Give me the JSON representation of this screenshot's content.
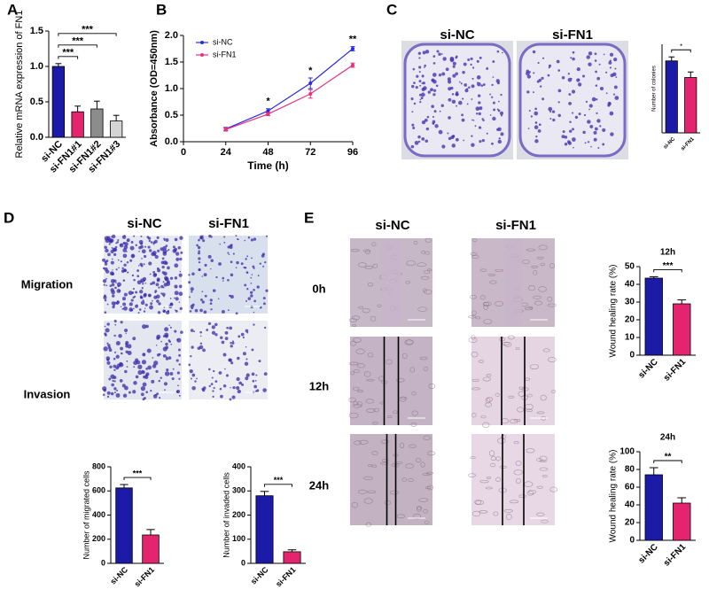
{
  "panels": [
    "A",
    "B",
    "C",
    "D",
    "E"
  ],
  "images": {
    "C": {
      "columns": [
        "si-NC",
        "si-FN1"
      ]
    },
    "D": {
      "columns": [
        "si-NC",
        "si-FN1"
      ],
      "rows": [
        "Migration",
        "Invasion"
      ]
    },
    "E": {
      "columns": [
        "si-NC",
        "si-FN1"
      ],
      "rows": [
        "0h",
        "12h",
        "24h"
      ]
    }
  },
  "chart_data": [
    {
      "type": "bar",
      "ylabel": "Relative mRNA expression of FN1",
      "categories": [
        "si-NC",
        "si-FN1#1",
        "si-FN1#2",
        "si-FN1#3"
      ],
      "values": [
        1.0,
        0.36,
        0.4,
        0.23
      ],
      "errors": [
        0.04,
        0.08,
        0.11,
        0.08
      ],
      "colors": [
        "#1b1ba8",
        "#e4246e",
        "#8c8c8c",
        "#d4d4d4"
      ],
      "ylim": [
        0,
        1.5
      ],
      "yticks": [
        {
          "value": 0,
          "label": "0.0"
        },
        {
          "value": 0.5,
          "label": "0.5"
        },
        {
          "value": 1,
          "label": "1.0"
        },
        {
          "value": 1.5,
          "label": "1.5"
        }
      ],
      "annotations": [
        "***",
        "***",
        "***"
      ]
    },
    {
      "type": "line",
      "xlabel": "Time (h)",
      "ylabel": "Absorbance (OD=450nm)",
      "x": [
        24,
        48,
        72,
        96
      ],
      "xlim": [
        0,
        96
      ],
      "xticks": [
        0,
        24,
        48,
        72,
        96
      ],
      "ylim": [
        0,
        2
      ],
      "yticks": [
        {
          "value": 0,
          "label": "0.0"
        },
        {
          "value": 0.5,
          "label": "0.5"
        },
        {
          "value": 1,
          "label": "1.0"
        },
        {
          "value": 1.5,
          "label": "1.5"
        },
        {
          "value": 2,
          "label": "2.0"
        }
      ],
      "series": [
        {
          "name": "si-NC",
          "color": "#2a2ae0",
          "values": [
            0.24,
            0.58,
            1.1,
            1.75
          ],
          "errors": [
            0.03,
            0.04,
            0.1,
            0.04
          ]
        },
        {
          "name": "si-FN1",
          "color": "#e8307a",
          "values": [
            0.23,
            0.52,
            0.9,
            1.44
          ],
          "errors": [
            0.03,
            0.03,
            0.08,
            0.04
          ]
        }
      ],
      "legend": "upper left",
      "annotations": [
        {
          "x": 48,
          "text": "*"
        },
        {
          "x": 72,
          "text": "*"
        },
        {
          "x": 96,
          "text": "**"
        }
      ]
    },
    {
      "type": "bar",
      "ylabel": "Number of colonies",
      "categories": [
        "si-NC",
        "si-FN1"
      ],
      "values": [
        325,
        250
      ],
      "errors": [
        18,
        25
      ],
      "colors": [
        "#1b1ba8",
        "#e4246e"
      ],
      "ylim": [
        0,
        400
      ],
      "annotations": [
        "*"
      ]
    },
    {
      "type": "bar",
      "ylabel": "Number of migrated cells",
      "categories": [
        "si-NC",
        "si-FN1"
      ],
      "values": [
        625,
        235
      ],
      "errors": [
        28,
        45
      ],
      "colors": [
        "#1b1ba8",
        "#e4246e"
      ],
      "ylim": [
        0,
        800
      ],
      "yticks": [
        0,
        200,
        400,
        600,
        800
      ],
      "annotations": [
        "***"
      ]
    },
    {
      "type": "bar",
      "ylabel": "Number of invaded cells",
      "categories": [
        "si-NC",
        "si-FN1"
      ],
      "values": [
        280,
        48
      ],
      "errors": [
        18,
        8
      ],
      "colors": [
        "#1b1ba8",
        "#e4246e"
      ],
      "ylim": [
        0,
        400
      ],
      "yticks": [
        0,
        100,
        200,
        300,
        400
      ],
      "annotations": [
        "***"
      ]
    },
    {
      "type": "bar",
      "title": "12h",
      "ylabel": "Wound healing rate (%)",
      "categories": [
        "si-NC",
        "si-FN1"
      ],
      "values": [
        43.5,
        29
      ],
      "errors": [
        0.8,
        2.2
      ],
      "colors": [
        "#1b1ba8",
        "#e4246e"
      ],
      "ylim": [
        0,
        50
      ],
      "yticks": [
        0,
        10,
        20,
        30,
        40,
        50
      ],
      "annotations": [
        "***"
      ]
    },
    {
      "type": "bar",
      "title": "24h",
      "ylabel": "Wound healing rate (%)",
      "categories": [
        "si-NC",
        "si-FN1"
      ],
      "values": [
        74,
        42
      ],
      "errors": [
        8,
        6
      ],
      "colors": [
        "#1b1ba8",
        "#e4246e"
      ],
      "ylim": [
        0,
        100
      ],
      "yticks": [
        0,
        20,
        40,
        60,
        80,
        100
      ],
      "annotations": [
        "**"
      ]
    }
  ]
}
